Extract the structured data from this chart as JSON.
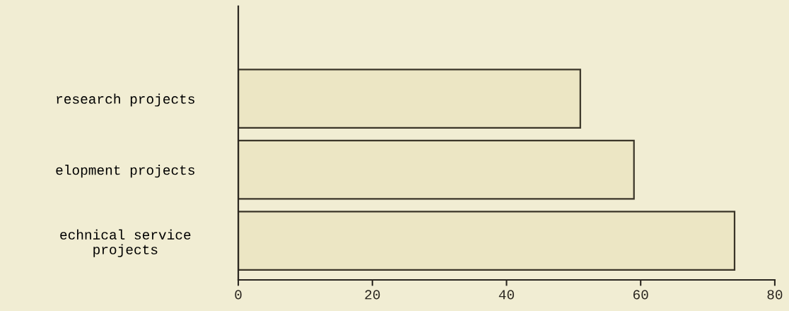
{
  "chart_data": {
    "type": "bar",
    "orientation": "horizontal",
    "categories": [
      "research projects",
      "elopment projects",
      "echnical service\nprojects"
    ],
    "values": [
      51,
      59,
      74
    ],
    "color": "#ece6c4",
    "xlim": [
      0,
      80
    ],
    "xticks": [
      0,
      20,
      40,
      60,
      80
    ],
    "grid": false
  }
}
